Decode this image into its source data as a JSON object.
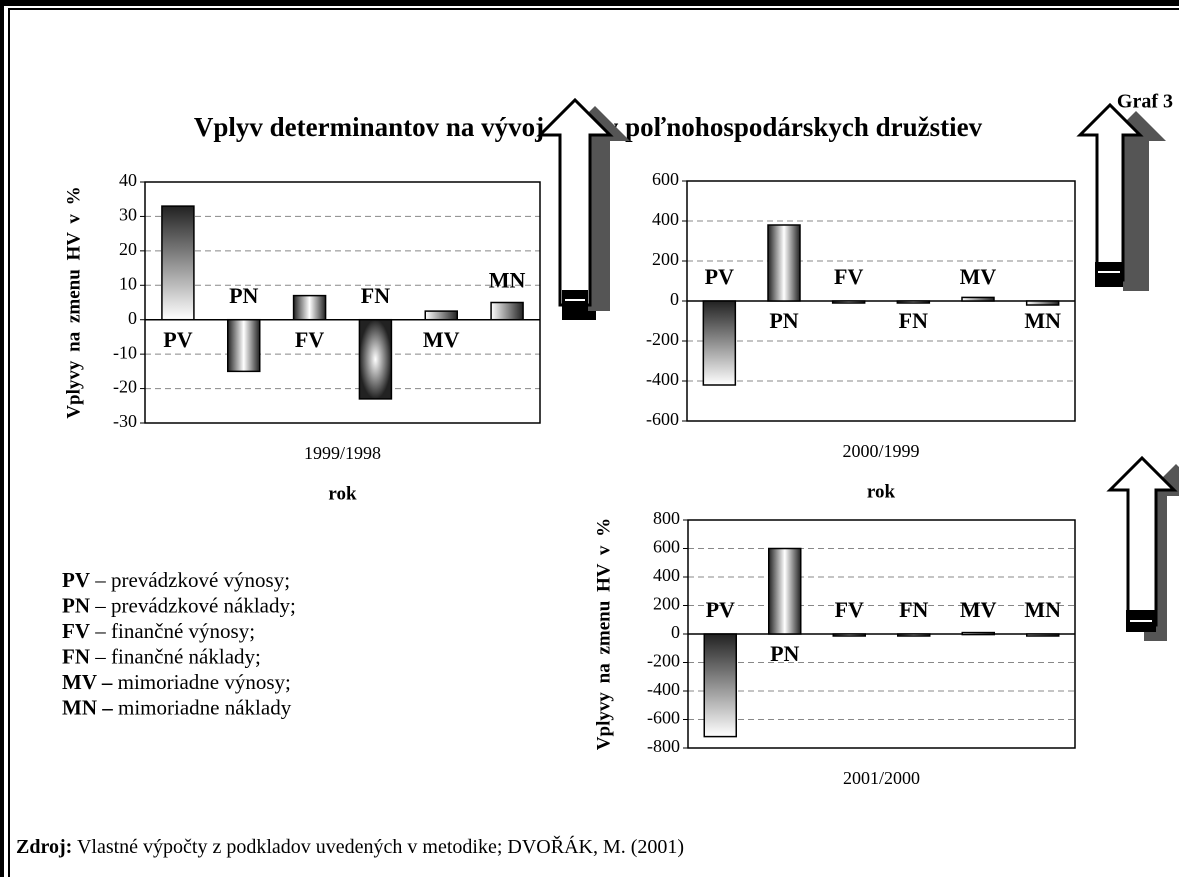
{
  "figure_label": "Graf 3",
  "title": "Vplyv determinantov na vývoj straty poľnohospodárskych družstiev",
  "chart_data": [
    {
      "type": "bar",
      "categories": [
        "PV",
        "PN",
        "FV",
        "FN",
        "MV",
        "MN"
      ],
      "values": [
        33,
        -15,
        7,
        -23,
        2.5,
        5
      ],
      "ylim": [
        -30,
        40
      ],
      "yticks": [
        -30,
        -20,
        -10,
        0,
        10,
        20,
        30,
        40
      ],
      "grid": true,
      "ylabel": "Vplyvy na zmenu HV v %",
      "xlabel": "1999/1998",
      "xtitle": "rok"
    },
    {
      "type": "bar",
      "categories": [
        "PV",
        "PN",
        "FV",
        "FN",
        "MV",
        "MN"
      ],
      "values": [
        -420,
        380,
        0,
        -8,
        18,
        -20
      ],
      "ylim": [
        -600,
        600
      ],
      "yticks": [
        -600,
        -400,
        -200,
        0,
        200,
        400,
        600
      ],
      "grid": true,
      "xlabel": "2000/1999",
      "xtitle": "rok"
    },
    {
      "type": "bar",
      "categories": [
        "PV",
        "PN",
        "FV",
        "FN",
        "MV",
        "MN"
      ],
      "values": [
        -720,
        600,
        0,
        0,
        10,
        0
      ],
      "ylim": [
        -800,
        800
      ],
      "yticks": [
        -800,
        -600,
        -400,
        -200,
        0,
        200,
        400,
        600,
        800
      ],
      "grid": true,
      "ylabel": "Vplyvy na zmenu HV v %",
      "xlabel": "2001/2000"
    }
  ],
  "legend": [
    {
      "abbr": "PV",
      "text": " – prevádzkové výnosy;"
    },
    {
      "abbr": "PN",
      "text": " – prevádzkové náklady;"
    },
    {
      "abbr": "FV",
      "text": " – finančné výnosy;"
    },
    {
      "abbr": "FN",
      "text": " – finančné náklady;"
    },
    {
      "abbr": "MV –",
      "text": " mimoriadne výnosy;"
    },
    {
      "abbr": "MN –",
      "text": " mimoriadne náklady"
    }
  ],
  "source": {
    "label": "Zdroj:",
    "text": " Vlastné výpočty z podkladov uvedených v metodike; DVOŘÁK, M. (2001)"
  }
}
